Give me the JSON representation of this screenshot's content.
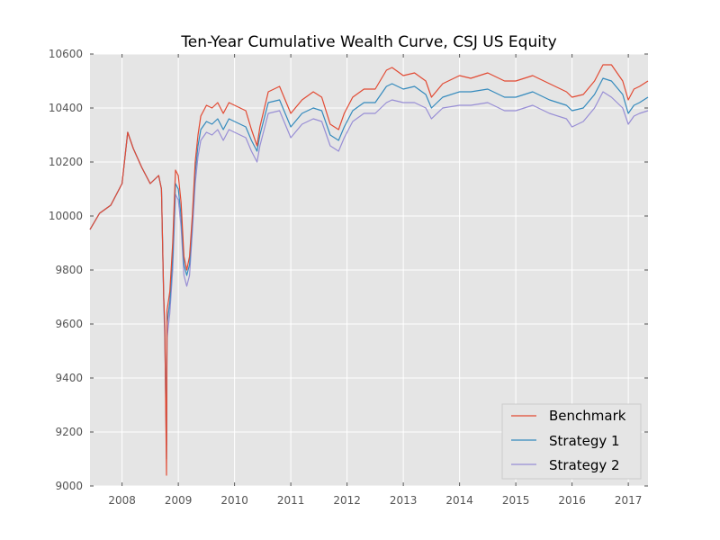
{
  "chart_data": {
    "type": "line",
    "title": "Ten-Year Cumulative Wealth Curve, CSJ US Equity",
    "xlabel": "",
    "ylabel": "",
    "xlim": [
      2007.43,
      2017.35
    ],
    "ylim": [
      9000,
      10600
    ],
    "x_ticks": [
      2008,
      2009,
      2010,
      2011,
      2012,
      2013,
      2014,
      2015,
      2016,
      2017
    ],
    "y_ticks": [
      9000,
      9200,
      9400,
      9600,
      9800,
      10000,
      10200,
      10400,
      10600
    ],
    "grid": true,
    "legend_position": "bottom-right",
    "series": [
      {
        "name": "Benchmark",
        "color": "#e24a33",
        "x": [
          2007.43,
          2007.6,
          2007.8,
          2008.0,
          2008.1,
          2008.2,
          2008.35,
          2008.5,
          2008.65,
          2008.7,
          2008.74,
          2008.76,
          2008.79,
          2008.8,
          2008.85,
          2008.9,
          2008.95,
          2009.0,
          2009.05,
          2009.1,
          2009.15,
          2009.2,
          2009.25,
          2009.3,
          2009.35,
          2009.4,
          2009.5,
          2009.6,
          2009.7,
          2009.8,
          2009.9,
          2010.0,
          2010.2,
          2010.3,
          2010.4,
          2010.45,
          2010.6,
          2010.8,
          2011.0,
          2011.2,
          2011.4,
          2011.55,
          2011.7,
          2011.85,
          2011.95,
          2012.1,
          2012.3,
          2012.5,
          2012.7,
          2012.8,
          2013.0,
          2013.2,
          2013.4,
          2013.5,
          2013.7,
          2014.0,
          2014.2,
          2014.5,
          2014.8,
          2015.0,
          2015.3,
          2015.6,
          2015.9,
          2016.0,
          2016.2,
          2016.4,
          2016.55,
          2016.7,
          2016.9,
          2017.0,
          2017.1,
          2017.2,
          2017.35
        ],
        "y": [
          9950,
          10010,
          10040,
          10120,
          10310,
          10250,
          10180,
          10120,
          10150,
          10100,
          9700,
          9600,
          9040,
          9650,
          9720,
          9900,
          10170,
          10150,
          10050,
          9850,
          9800,
          9850,
          10000,
          10200,
          10300,
          10370,
          10410,
          10400,
          10420,
          10380,
          10420,
          10410,
          10390,
          10320,
          10260,
          10330,
          10460,
          10480,
          10380,
          10430,
          10460,
          10440,
          10340,
          10320,
          10380,
          10440,
          10470,
          10470,
          10540,
          10550,
          10520,
          10530,
          10500,
          10440,
          10490,
          10520,
          10510,
          10530,
          10500,
          10500,
          10520,
          10490,
          10460,
          10440,
          10450,
          10500,
          10560,
          10560,
          10500,
          10430,
          10470,
          10480,
          10500
        ]
      },
      {
        "name": "Strategy 1",
        "color": "#348abd",
        "x": [
          2007.43,
          2007.6,
          2007.8,
          2008.0,
          2008.1,
          2008.2,
          2008.35,
          2008.5,
          2008.65,
          2008.7,
          2008.74,
          2008.76,
          2008.79,
          2008.8,
          2008.85,
          2008.9,
          2008.95,
          2009.0,
          2009.05,
          2009.1,
          2009.15,
          2009.2,
          2009.25,
          2009.3,
          2009.35,
          2009.4,
          2009.5,
          2009.6,
          2009.7,
          2009.8,
          2009.9,
          2010.0,
          2010.2,
          2010.3,
          2010.4,
          2010.45,
          2010.6,
          2010.8,
          2011.0,
          2011.2,
          2011.4,
          2011.55,
          2011.7,
          2011.85,
          2011.95,
          2012.1,
          2012.3,
          2012.5,
          2012.7,
          2012.8,
          2013.0,
          2013.2,
          2013.4,
          2013.5,
          2013.7,
          2014.0,
          2014.2,
          2014.5,
          2014.8,
          2015.0,
          2015.3,
          2015.6,
          2015.9,
          2016.0,
          2016.2,
          2016.4,
          2016.55,
          2016.7,
          2016.9,
          2017.0,
          2017.1,
          2017.2,
          2017.35
        ],
        "y": [
          9950,
          10010,
          10040,
          10120,
          10310,
          10250,
          10180,
          10120,
          10150,
          10100,
          9700,
          9580,
          9100,
          9600,
          9680,
          9850,
          10120,
          10100,
          10000,
          9820,
          9780,
          9820,
          9980,
          10160,
          10260,
          10320,
          10350,
          10340,
          10360,
          10320,
          10360,
          10350,
          10330,
          10280,
          10240,
          10300,
          10420,
          10430,
          10330,
          10380,
          10400,
          10390,
          10300,
          10280,
          10330,
          10390,
          10420,
          10420,
          10480,
          10490,
          10470,
          10480,
          10450,
          10400,
          10440,
          10460,
          10460,
          10470,
          10440,
          10440,
          10460,
          10430,
          10410,
          10390,
          10400,
          10450,
          10510,
          10500,
          10450,
          10380,
          10410,
          10420,
          10440
        ]
      },
      {
        "name": "Strategy 2",
        "color": "#988ed5",
        "x": [
          2007.43,
          2007.6,
          2007.8,
          2008.0,
          2008.1,
          2008.2,
          2008.35,
          2008.5,
          2008.65,
          2008.7,
          2008.74,
          2008.76,
          2008.79,
          2008.8,
          2008.85,
          2008.9,
          2008.95,
          2009.0,
          2009.05,
          2009.1,
          2009.15,
          2009.2,
          2009.25,
          2009.3,
          2009.35,
          2009.4,
          2009.5,
          2009.6,
          2009.7,
          2009.8,
          2009.9,
          2010.0,
          2010.2,
          2010.3,
          2010.4,
          2010.45,
          2010.6,
          2010.8,
          2011.0,
          2011.2,
          2011.4,
          2011.55,
          2011.7,
          2011.85,
          2011.95,
          2012.1,
          2012.3,
          2012.5,
          2012.7,
          2012.8,
          2013.0,
          2013.2,
          2013.4,
          2013.5,
          2013.7,
          2014.0,
          2014.2,
          2014.5,
          2014.8,
          2015.0,
          2015.3,
          2015.6,
          2015.9,
          2016.0,
          2016.2,
          2016.4,
          2016.55,
          2016.7,
          2016.9,
          2017.0,
          2017.1,
          2017.2,
          2017.35
        ],
        "y": [
          9950,
          10010,
          10040,
          10120,
          10310,
          10250,
          10180,
          10120,
          10150,
          10100,
          9680,
          9550,
          9150,
          9550,
          9640,
          9800,
          10080,
          10060,
          9960,
          9780,
          9740,
          9780,
          9940,
          10120,
          10220,
          10280,
          10310,
          10300,
          10320,
          10280,
          10320,
          10310,
          10290,
          10240,
          10200,
          10260,
          10380,
          10390,
          10290,
          10340,
          10360,
          10350,
          10260,
          10240,
          10290,
          10350,
          10380,
          10380,
          10420,
          10430,
          10420,
          10420,
          10400,
          10360,
          10400,
          10410,
          10410,
          10420,
          10390,
          10390,
          10410,
          10380,
          10360,
          10330,
          10350,
          10400,
          10460,
          10440,
          10400,
          10340,
          10370,
          10380,
          10390
        ]
      }
    ]
  }
}
